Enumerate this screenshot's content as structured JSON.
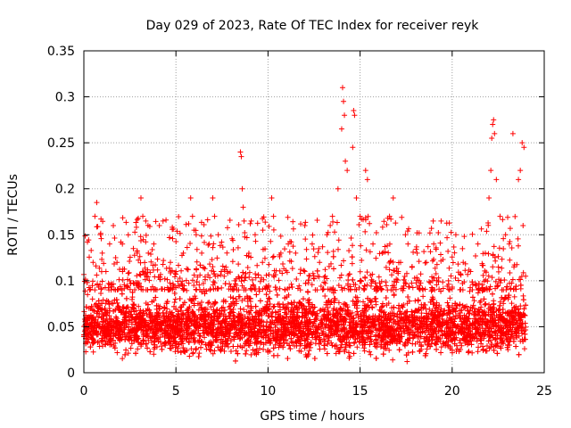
{
  "chart_data": {
    "type": "scatter",
    "title": "Day 029 of 2023, Rate Of TEC Index for receiver reyk",
    "xlabel": "GPS time / hours",
    "ylabel": "ROTI / TECUs",
    "xlim": [
      0,
      25
    ],
    "ylim": [
      0,
      0.35
    ],
    "x_ticks": [
      0,
      5,
      10,
      15,
      20,
      25
    ],
    "x_tick_labels": [
      "0",
      "5",
      "10",
      "15",
      "20",
      "25"
    ],
    "y_ticks": [
      0,
      0.05,
      0.1,
      0.15,
      0.2,
      0.25,
      0.3,
      0.35
    ],
    "y_tick_labels": [
      "0",
      "0.05",
      "0.1",
      "0.15",
      "0.2",
      "0.25",
      "0.3",
      "0.35"
    ],
    "grid": true,
    "marker": "+",
    "color": "#ff0000",
    "dense_band": {
      "x_range": [
        0,
        24
      ],
      "y_range": [
        0.01,
        0.09
      ],
      "typical_center": 0.05
    },
    "series": [
      {
        "name": "ROTI",
        "points": [
          [
            0.2,
            0.085
          ],
          [
            0.5,
            0.12
          ],
          [
            0.6,
            0.17
          ],
          [
            0.7,
            0.185
          ],
          [
            0.9,
            0.15
          ],
          [
            1.0,
            0.13
          ],
          [
            1.2,
            0.11
          ],
          [
            1.4,
            0.14
          ],
          [
            1.6,
            0.16
          ],
          [
            1.8,
            0.12
          ],
          [
            2.1,
            0.11
          ],
          [
            2.5,
            0.1
          ],
          [
            2.9,
            0.13
          ],
          [
            3.1,
            0.19
          ],
          [
            3.2,
            0.17
          ],
          [
            3.5,
            0.13
          ],
          [
            3.8,
            0.14
          ],
          [
            4.1,
            0.16
          ],
          [
            4.3,
            0.165
          ],
          [
            4.7,
            0.12
          ],
          [
            5.0,
            0.11
          ],
          [
            5.4,
            0.13
          ],
          [
            5.8,
            0.19
          ],
          [
            5.9,
            0.17
          ],
          [
            6.1,
            0.15
          ],
          [
            6.4,
            0.13
          ],
          [
            6.8,
            0.14
          ],
          [
            7.0,
            0.19
          ],
          [
            7.1,
            0.17
          ],
          [
            7.3,
            0.15
          ],
          [
            7.8,
            0.11
          ],
          [
            8.2,
            0.1
          ],
          [
            8.5,
            0.24
          ],
          [
            8.55,
            0.235
          ],
          [
            8.6,
            0.2
          ],
          [
            8.65,
            0.18
          ],
          [
            8.7,
            0.165
          ],
          [
            8.8,
            0.09
          ],
          [
            9.3,
            0.15
          ],
          [
            9.7,
            0.12
          ],
          [
            10.2,
            0.19
          ],
          [
            10.3,
            0.17
          ],
          [
            10.7,
            0.13
          ],
          [
            11.1,
            0.14
          ],
          [
            11.5,
            0.13
          ],
          [
            12.0,
            0.16
          ],
          [
            12.4,
            0.14
          ],
          [
            12.8,
            0.12
          ],
          [
            13.2,
            0.15
          ],
          [
            13.5,
            0.17
          ],
          [
            13.8,
            0.2
          ],
          [
            14.0,
            0.265
          ],
          [
            14.05,
            0.31
          ],
          [
            14.1,
            0.295
          ],
          [
            14.15,
            0.28
          ],
          [
            14.2,
            0.23
          ],
          [
            14.3,
            0.22
          ],
          [
            14.6,
            0.245
          ],
          [
            14.65,
            0.285
          ],
          [
            14.7,
            0.28
          ],
          [
            14.8,
            0.19
          ],
          [
            15.0,
            0.17
          ],
          [
            15.3,
            0.22
          ],
          [
            15.4,
            0.21
          ],
          [
            15.7,
            0.14
          ],
          [
            16.2,
            0.13
          ],
          [
            16.6,
            0.17
          ],
          [
            16.8,
            0.19
          ],
          [
            17.2,
            0.12
          ],
          [
            17.6,
            0.14
          ],
          [
            18.1,
            0.13
          ],
          [
            18.6,
            0.12
          ],
          [
            19.0,
            0.14
          ],
          [
            19.4,
            0.165
          ],
          [
            19.8,
            0.1
          ],
          [
            20.2,
            0.15
          ],
          [
            20.6,
            0.12
          ],
          [
            21.0,
            0.11
          ],
          [
            21.4,
            0.14
          ],
          [
            21.8,
            0.13
          ],
          [
            22.0,
            0.19
          ],
          [
            22.1,
            0.22
          ],
          [
            22.15,
            0.255
          ],
          [
            22.2,
            0.27
          ],
          [
            22.25,
            0.275
          ],
          [
            22.3,
            0.26
          ],
          [
            22.4,
            0.21
          ],
          [
            22.6,
            0.17
          ],
          [
            22.9,
            0.15
          ],
          [
            23.1,
            0.14
          ],
          [
            23.3,
            0.26
          ],
          [
            23.6,
            0.21
          ],
          [
            23.7,
            0.22
          ],
          [
            23.8,
            0.25
          ],
          [
            23.9,
            0.245
          ],
          [
            23.85,
            0.16
          ]
        ]
      }
    ]
  }
}
